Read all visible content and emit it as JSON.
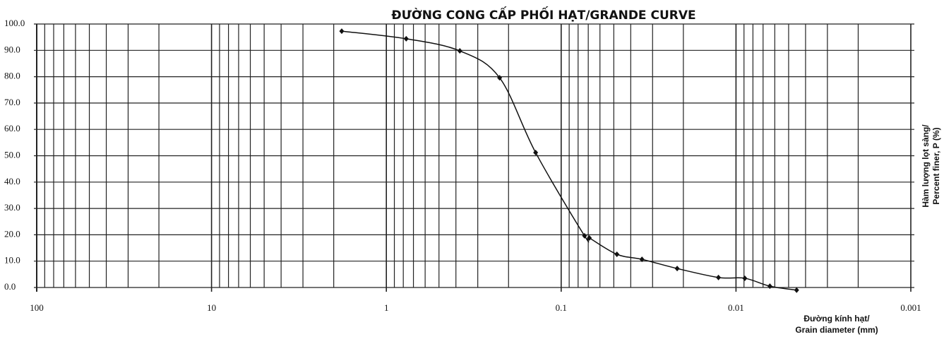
{
  "chart_data": {
    "type": "line",
    "title": "ĐƯỜNG CONG CẤP PHỐI HẠT/GRANDE CURVE",
    "x_label": "Đường kính hạt/ Grain diameter (mm)",
    "y_label": "Hàm lượng lọt sàng/ Percent finer, P (%)",
    "xscale": "log",
    "xlim": [
      100,
      0.001
    ],
    "ylim": [
      0,
      100
    ],
    "xticks": [
      100,
      10,
      1,
      0.1,
      0.01,
      0.001
    ],
    "xminorticks": [
      90,
      80,
      70,
      60,
      50,
      40,
      30,
      20,
      9,
      8,
      7,
      6,
      5,
      4,
      3,
      2,
      0.9,
      0.8,
      0.7,
      0.6,
      0.5,
      0.4,
      0.3,
      0.2,
      0.09,
      0.08,
      0.07,
      0.06,
      0.05,
      0.04,
      0.03,
      0.02,
      0.009,
      0.008,
      0.007,
      0.006,
      0.005,
      0.004,
      0.003,
      0.002
    ],
    "yticks": [
      {
        "value": 0,
        "label": "0.0"
      },
      {
        "value": 10,
        "label": "10.0"
      },
      {
        "value": 20,
        "label": "20.0"
      },
      {
        "value": 30,
        "label": "30.0"
      },
      {
        "value": 40,
        "label": "40.0"
      },
      {
        "value": 50,
        "label": "50.0"
      },
      {
        "value": 60,
        "label": "60.0"
      },
      {
        "value": 70,
        "label": "70.0"
      },
      {
        "value": 80,
        "label": "80.0"
      },
      {
        "value": 90,
        "label": "90.0"
      },
      {
        "value": 100,
        "label": "100.0"
      }
    ],
    "grid": true,
    "x": [
      1.8,
      0.77,
      0.38,
      0.225,
      0.14,
      0.0735,
      0.069,
      0.048,
      0.0345,
      0.0217,
      0.0126,
      0.0089,
      0.0064,
      0.0045
    ],
    "series": [
      {
        "color": "#111111",
        "values": [
          97.3,
          94.4,
          89.8,
          79.6,
          51.2,
          19.6,
          18.8,
          12.6,
          10.7,
          7.2,
          3.8,
          3.5,
          0.5,
          -1
        ]
      }
    ]
  }
}
